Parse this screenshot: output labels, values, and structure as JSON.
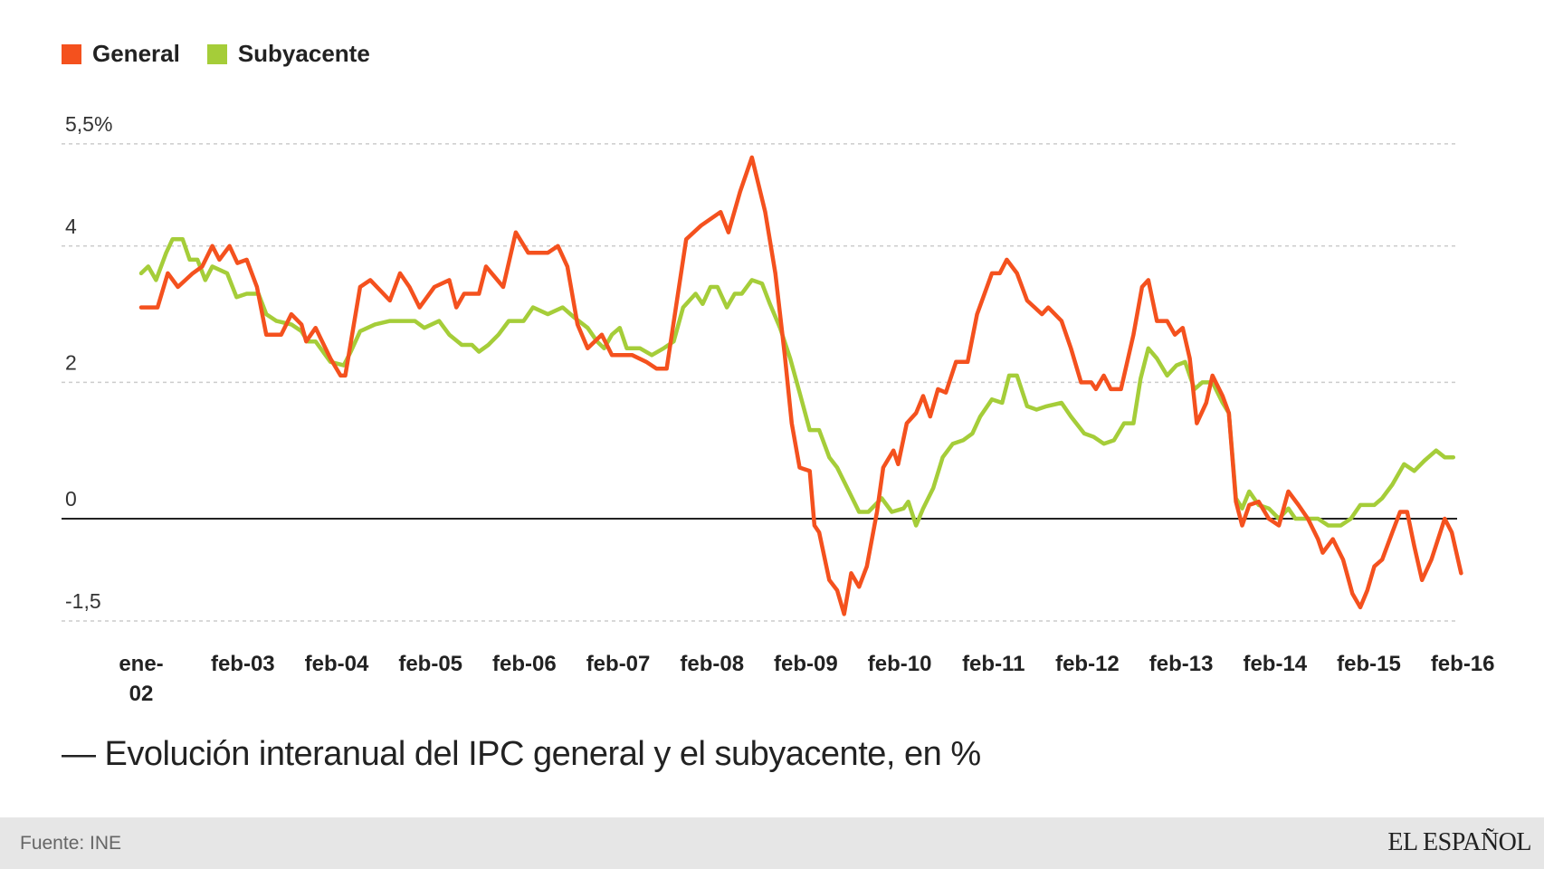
{
  "chart_data": {
    "type": "line",
    "title": "— Evolución interanual del IPC general y el subyacente, en %",
    "xlabel": "",
    "ylabel": "",
    "x_unit": "months since ene-02",
    "xlim": [
      0,
      169
    ],
    "ylim": [
      -1.5,
      5.5
    ],
    "y_ticks": [
      {
        "value": 5.5,
        "label": "5,5%"
      },
      {
        "value": 4,
        "label": "4"
      },
      {
        "value": 2,
        "label": "2"
      },
      {
        "value": 0,
        "label": "0"
      },
      {
        "value": -1.5,
        "label": "-1,5"
      }
    ],
    "x_ticks": [
      {
        "value": 0,
        "label": "ene-",
        "label2": "02"
      },
      {
        "value": 13,
        "label": "feb-03"
      },
      {
        "value": 25,
        "label": "feb-04"
      },
      {
        "value": 37,
        "label": "feb-05"
      },
      {
        "value": 49,
        "label": "feb-06"
      },
      {
        "value": 61,
        "label": "feb-07"
      },
      {
        "value": 73,
        "label": "feb-08"
      },
      {
        "value": 85,
        "label": "feb-09"
      },
      {
        "value": 97,
        "label": "feb-10"
      },
      {
        "value": 109,
        "label": "feb-11"
      },
      {
        "value": 121,
        "label": "feb-12"
      },
      {
        "value": 133,
        "label": "feb-13"
      },
      {
        "value": 145,
        "label": "feb-14"
      },
      {
        "value": 157,
        "label": "feb-15"
      },
      {
        "value": 169,
        "label": "feb-16"
      }
    ],
    "grid": true,
    "legend_position": "top-left",
    "series": [
      {
        "name": "General",
        "color": "#f4511e",
        "points": [
          [
            0,
            3.1
          ],
          [
            2.1,
            3.1
          ],
          [
            3.4,
            3.6
          ],
          [
            4.7,
            3.4
          ],
          [
            6.6,
            3.6
          ],
          [
            7.8,
            3.7
          ],
          [
            9.1,
            4.0
          ],
          [
            10,
            3.8
          ],
          [
            11.3,
            4.0
          ],
          [
            12.3,
            3.75
          ],
          [
            13.5,
            3.8
          ],
          [
            14.8,
            3.4
          ],
          [
            16,
            2.7
          ],
          [
            17.9,
            2.7
          ],
          [
            19.2,
            3.0
          ],
          [
            20.5,
            2.85
          ],
          [
            21.1,
            2.6
          ],
          [
            22.3,
            2.8
          ],
          [
            24.2,
            2.35
          ],
          [
            25.5,
            2.1
          ],
          [
            26.1,
            2.1
          ],
          [
            28,
            3.4
          ],
          [
            29.3,
            3.5
          ],
          [
            31.8,
            3.2
          ],
          [
            33.1,
            3.6
          ],
          [
            34.3,
            3.4
          ],
          [
            35.6,
            3.1
          ],
          [
            37.5,
            3.4
          ],
          [
            39.4,
            3.5
          ],
          [
            40.3,
            3.1
          ],
          [
            41.3,
            3.3
          ],
          [
            43.2,
            3.3
          ],
          [
            44.1,
            3.7
          ],
          [
            46.3,
            3.4
          ],
          [
            47.9,
            4.2
          ],
          [
            49.5,
            3.9
          ],
          [
            52,
            3.9
          ],
          [
            53.3,
            4.0
          ],
          [
            54.5,
            3.7
          ],
          [
            55.8,
            2.85
          ],
          [
            57.1,
            2.5
          ],
          [
            58.9,
            2.7
          ],
          [
            60.2,
            2.4
          ],
          [
            62.8,
            2.4
          ],
          [
            64.6,
            2.3
          ],
          [
            65.9,
            2.2
          ],
          [
            67.2,
            2.2
          ],
          [
            69.7,
            4.1
          ],
          [
            71.6,
            4.3
          ],
          [
            74.1,
            4.5
          ],
          [
            75.1,
            4.2
          ],
          [
            76.6,
            4.8
          ],
          [
            78.1,
            5.3
          ],
          [
            79.8,
            4.5
          ],
          [
            81.1,
            3.6
          ],
          [
            82.3,
            2.4
          ],
          [
            83.2,
            1.4
          ],
          [
            84.2,
            0.75
          ],
          [
            85.5,
            0.7
          ],
          [
            86.1,
            -0.1
          ],
          [
            86.7,
            -0.2
          ],
          [
            88,
            -0.9
          ],
          [
            89,
            -1.05
          ],
          [
            89.9,
            -1.4
          ],
          [
            90.8,
            -0.8
          ],
          [
            91.8,
            -1.0
          ],
          [
            92.8,
            -0.7
          ],
          [
            94.1,
            0.1
          ],
          [
            94.9,
            0.75
          ],
          [
            96.2,
            1.0
          ],
          [
            96.8,
            0.8
          ],
          [
            97.9,
            1.4
          ],
          [
            99.1,
            1.55
          ],
          [
            100,
            1.8
          ],
          [
            100.9,
            1.5
          ],
          [
            101.9,
            1.9
          ],
          [
            102.9,
            1.85
          ],
          [
            104.2,
            2.3
          ],
          [
            105.7,
            2.3
          ],
          [
            106.9,
            3.0
          ],
          [
            108.8,
            3.6
          ],
          [
            109.8,
            3.6
          ],
          [
            110.7,
            3.8
          ],
          [
            112,
            3.6
          ],
          [
            113.3,
            3.2
          ],
          [
            115.2,
            3.0
          ],
          [
            116,
            3.1
          ],
          [
            117.7,
            2.9
          ],
          [
            118.9,
            2.5
          ],
          [
            120.2,
            2.0
          ],
          [
            121.5,
            2.0
          ],
          [
            122.1,
            1.9
          ],
          [
            123.1,
            2.1
          ],
          [
            124,
            1.9
          ],
          [
            125.3,
            1.9
          ],
          [
            126.9,
            2.7
          ],
          [
            128,
            3.4
          ],
          [
            128.8,
            3.5
          ],
          [
            129.9,
            2.9
          ],
          [
            131.2,
            2.9
          ],
          [
            132.2,
            2.7
          ],
          [
            133.2,
            2.8
          ],
          [
            134.1,
            2.35
          ],
          [
            135,
            1.4
          ],
          [
            136.2,
            1.7
          ],
          [
            137,
            2.1
          ],
          [
            138.3,
            1.8
          ],
          [
            139.1,
            1.55
          ],
          [
            140,
            0.25
          ],
          [
            140.8,
            -0.1
          ],
          [
            141.7,
            0.2
          ],
          [
            142.9,
            0.25
          ],
          [
            144.2,
            0.0
          ],
          [
            145.5,
            -0.1
          ],
          [
            146.7,
            0.4
          ],
          [
            148,
            0.2
          ],
          [
            149.2,
            0.0
          ],
          [
            150.5,
            -0.3
          ],
          [
            151.1,
            -0.5
          ],
          [
            152.4,
            -0.3
          ],
          [
            153.7,
            -0.6
          ],
          [
            154.9,
            -1.1
          ],
          [
            155.9,
            -1.3
          ],
          [
            156.8,
            -1.05
          ],
          [
            157.7,
            -0.7
          ],
          [
            158.7,
            -0.6
          ],
          [
            160,
            -0.2
          ],
          [
            161,
            0.1
          ],
          [
            161.9,
            0.1
          ],
          [
            162.8,
            -0.4
          ],
          [
            163.8,
            -0.9
          ],
          [
            165,
            -0.6
          ],
          [
            166.7,
            0.0
          ],
          [
            167.6,
            -0.2
          ],
          [
            168.8,
            -0.8
          ]
        ]
      },
      {
        "name": "Subyacente",
        "color": "#a5cd39",
        "points": [
          [
            0,
            3.6
          ],
          [
            0.9,
            3.7
          ],
          [
            1.9,
            3.5
          ],
          [
            3.2,
            3.9
          ],
          [
            4,
            4.1
          ],
          [
            5.3,
            4.1
          ],
          [
            6.2,
            3.8
          ],
          [
            7.2,
            3.8
          ],
          [
            8.2,
            3.5
          ],
          [
            9.1,
            3.7
          ],
          [
            11,
            3.6
          ],
          [
            12.2,
            3.25
          ],
          [
            13.5,
            3.3
          ],
          [
            15,
            3.3
          ],
          [
            16,
            3.0
          ],
          [
            17.3,
            2.9
          ],
          [
            19.2,
            2.85
          ],
          [
            20.5,
            2.75
          ],
          [
            21.3,
            2.6
          ],
          [
            22.3,
            2.6
          ],
          [
            24.2,
            2.3
          ],
          [
            25.9,
            2.25
          ],
          [
            26.8,
            2.45
          ],
          [
            28,
            2.75
          ],
          [
            29.9,
            2.85
          ],
          [
            31.8,
            2.9
          ],
          [
            35,
            2.9
          ],
          [
            36.2,
            2.8
          ],
          [
            38.1,
            2.9
          ],
          [
            39.4,
            2.7
          ],
          [
            41,
            2.55
          ],
          [
            42.3,
            2.55
          ],
          [
            43.2,
            2.45
          ],
          [
            44.4,
            2.55
          ],
          [
            45.7,
            2.7
          ],
          [
            47,
            2.9
          ],
          [
            48.9,
            2.9
          ],
          [
            50.1,
            3.1
          ],
          [
            52,
            3.0
          ],
          [
            53.9,
            3.1
          ],
          [
            55.4,
            2.95
          ],
          [
            57.1,
            2.8
          ],
          [
            58.3,
            2.6
          ],
          [
            59.2,
            2.5
          ],
          [
            60.2,
            2.7
          ],
          [
            61.2,
            2.8
          ],
          [
            62.1,
            2.5
          ],
          [
            63.8,
            2.5
          ],
          [
            65.3,
            2.4
          ],
          [
            66.8,
            2.5
          ],
          [
            68.1,
            2.6
          ],
          [
            69.3,
            3.1
          ],
          [
            70.9,
            3.3
          ],
          [
            71.8,
            3.15
          ],
          [
            72.8,
            3.4
          ],
          [
            73.7,
            3.4
          ],
          [
            74.9,
            3.1
          ],
          [
            75.9,
            3.3
          ],
          [
            76.8,
            3.3
          ],
          [
            78.1,
            3.5
          ],
          [
            79.4,
            3.45
          ],
          [
            80.4,
            3.15
          ],
          [
            81.7,
            2.8
          ],
          [
            83,
            2.35
          ],
          [
            84.2,
            1.85
          ],
          [
            85.5,
            1.3
          ],
          [
            86.7,
            1.3
          ],
          [
            88,
            0.9
          ],
          [
            89,
            0.75
          ],
          [
            90.3,
            0.45
          ],
          [
            91.8,
            0.1
          ],
          [
            93,
            0.1
          ],
          [
            94.7,
            0.3
          ],
          [
            96,
            0.1
          ],
          [
            97.5,
            0.15
          ],
          [
            98.1,
            0.25
          ],
          [
            99.1,
            -0.1
          ],
          [
            100,
            0.15
          ],
          [
            101.3,
            0.45
          ],
          [
            102.5,
            0.9
          ],
          [
            103.8,
            1.1
          ],
          [
            105.1,
            1.15
          ],
          [
            106.3,
            1.25
          ],
          [
            107.3,
            1.5
          ],
          [
            108.8,
            1.75
          ],
          [
            110.1,
            1.7
          ],
          [
            111,
            2.1
          ],
          [
            112,
            2.1
          ],
          [
            113.3,
            1.65
          ],
          [
            114.5,
            1.6
          ],
          [
            115.8,
            1.65
          ],
          [
            117.7,
            1.7
          ],
          [
            118.9,
            1.5
          ],
          [
            120.6,
            1.25
          ],
          [
            121.8,
            1.2
          ],
          [
            123.1,
            1.1
          ],
          [
            124.4,
            1.15
          ],
          [
            125.7,
            1.4
          ],
          [
            126.9,
            1.4
          ],
          [
            127.8,
            2.05
          ],
          [
            128.8,
            2.5
          ],
          [
            129.9,
            2.35
          ],
          [
            131.2,
            2.1
          ],
          [
            132.4,
            2.25
          ],
          [
            133.5,
            2.3
          ],
          [
            134.7,
            1.9
          ],
          [
            135.7,
            2.0
          ],
          [
            137,
            2.0
          ],
          [
            138.3,
            1.7
          ],
          [
            139.1,
            1.55
          ],
          [
            140,
            0.3
          ],
          [
            140.8,
            0.15
          ],
          [
            141.7,
            0.4
          ],
          [
            142.9,
            0.2
          ],
          [
            144.2,
            0.15
          ],
          [
            145.5,
            0.0
          ],
          [
            146.7,
            0.15
          ],
          [
            147.6,
            0.0
          ],
          [
            150.5,
            0.0
          ],
          [
            151.8,
            -0.1
          ],
          [
            153.4,
            -0.1
          ],
          [
            154.7,
            0.0
          ],
          [
            155.9,
            0.2
          ],
          [
            157.7,
            0.2
          ],
          [
            158.7,
            0.3
          ],
          [
            160,
            0.5
          ],
          [
            161.5,
            0.8
          ],
          [
            162.8,
            0.7
          ],
          [
            164.1,
            0.85
          ],
          [
            165.6,
            1.0
          ],
          [
            166.7,
            0.9
          ],
          [
            167.8,
            0.9
          ]
        ]
      }
    ]
  },
  "legend": {
    "items": [
      {
        "label": "General",
        "color": "#f4511e"
      },
      {
        "label": "Subyacente",
        "color": "#a5cd39"
      }
    ]
  },
  "title": "— Evolución interanual del IPC general y el subyacente, en %",
  "footer": {
    "source": "Fuente: INE",
    "brand": "EL ESPAÑOL"
  }
}
